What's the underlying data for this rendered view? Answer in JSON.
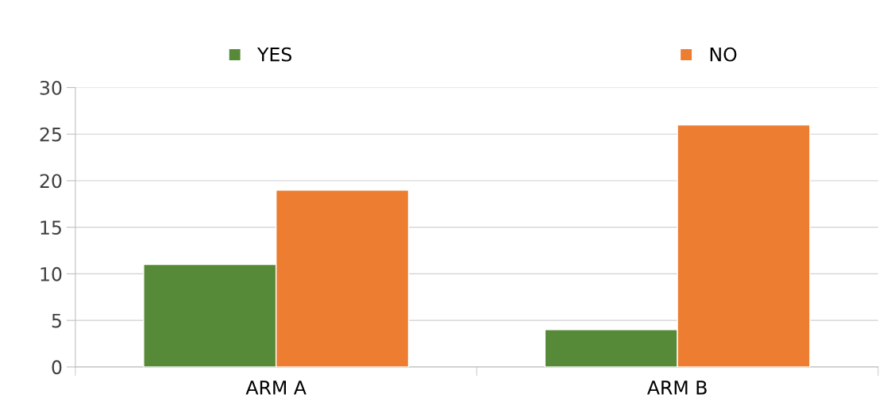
{
  "chart_data": {
    "type": "bar",
    "categories": [
      "ARM A",
      "ARM B"
    ],
    "series": [
      {
        "name": "YES",
        "color": "#578a38",
        "values": [
          11,
          4
        ]
      },
      {
        "name": "NO",
        "color": "#ed7d31",
        "values": [
          19,
          26
        ]
      }
    ],
    "ylim": [
      0,
      30
    ],
    "yticks": [
      0,
      5,
      10,
      15,
      20,
      25,
      30
    ],
    "grid": "y",
    "legend": "top"
  }
}
